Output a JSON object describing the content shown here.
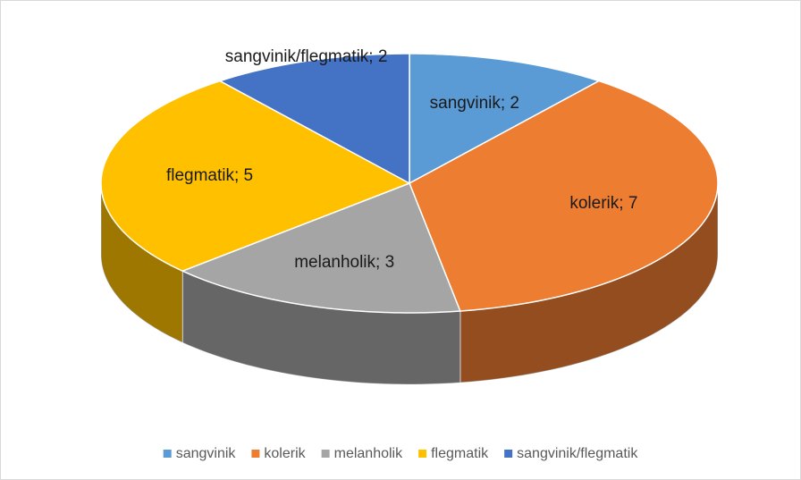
{
  "chart_data": {
    "type": "pie3d",
    "categories": [
      "sangvinik",
      "kolerik",
      "melanholik",
      "flegmatik",
      "sangvinik/flegmatik"
    ],
    "values": [
      2,
      7,
      3,
      5,
      2
    ],
    "value_labels": [
      "sangvinik; 2",
      "kolerik; 7",
      "melanholik; 3",
      "flegmatik; 5",
      "sangvinik/flegmatik; 2"
    ],
    "colors": [
      "#5b9bd5",
      "#ed7d31",
      "#a5a5a5",
      "#ffc000",
      "#4472c4"
    ],
    "legend": "bottom"
  }
}
